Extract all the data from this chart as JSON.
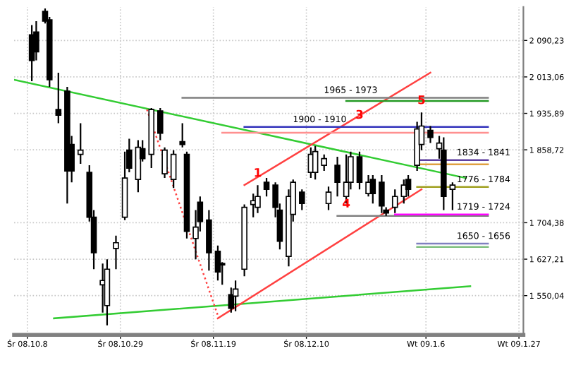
{
  "chart_data": {
    "type": "candlestick",
    "x": [
      "2008-10-09",
      "2008-10-10",
      "2008-10-12",
      "2008-10-13",
      "2008-10-15",
      "2008-10-17",
      "2008-10-18",
      "2008-10-20",
      "2008-10-22",
      "2008-10-23",
      "2008-10-25",
      "2008-10-26",
      "2008-10-28",
      "2008-10-30",
      "2008-10-31",
      "2008-11-02",
      "2008-11-03",
      "2008-11-05",
      "2008-11-07",
      "2008-11-08",
      "2008-11-10",
      "2008-11-12",
      "2008-11-13",
      "2008-11-15",
      "2008-11-16",
      "2008-11-18",
      "2008-11-20",
      "2008-11-21",
      "2008-11-23",
      "2008-11-24",
      "2008-11-26",
      "2008-11-28",
      "2008-11-29",
      "2008-12-01",
      "2008-12-03",
      "2008-12-04",
      "2008-12-06",
      "2008-12-07",
      "2008-12-09",
      "2008-12-11",
      "2008-12-12",
      "2008-12-14",
      "2008-12-15",
      "2008-12-17",
      "2008-12-19",
      "2008-12-20",
      "2008-12-22",
      "2008-12-24",
      "2008-12-25",
      "2008-12-27",
      "2008-12-28",
      "2008-12-30",
      "2009-01-01",
      "2009-01-02",
      "2009-01-04",
      "2009-01-05",
      "2009-01-07",
      "2009-01-09",
      "2009-01-10",
      "2009-01-12"
    ],
    "ohlc": [
      [
        2102,
        2123,
        2004,
        2048
      ],
      [
        2108,
        2131,
        2048,
        2066
      ],
      [
        2152,
        2158,
        2126,
        2131
      ],
      [
        2134,
        2140,
        1992,
        2007
      ],
      [
        1944,
        2022,
        1915,
        1932
      ],
      [
        1983,
        1992,
        1745,
        1814
      ],
      [
        1870,
        1888,
        1790,
        1814
      ],
      [
        1849,
        1915,
        1829,
        1858
      ],
      [
        1811,
        1826,
        1707,
        1716
      ],
      [
        1716,
        1731,
        1606,
        1641
      ],
      [
        1573,
        1618,
        1514,
        1582
      ],
      [
        1529,
        1627,
        1487,
        1606
      ],
      [
        1650,
        1677,
        1606,
        1662
      ],
      [
        1716,
        1855,
        1710,
        1799
      ],
      [
        1858,
        1882,
        1811,
        1820
      ],
      [
        1796,
        1879,
        1769,
        1864
      ],
      [
        1861,
        1879,
        1834,
        1840
      ],
      [
        1849,
        1947,
        1820,
        1944
      ],
      [
        1941,
        1947,
        1879,
        1894
      ],
      [
        1808,
        1864,
        1799,
        1858
      ],
      [
        1796,
        1858,
        1778,
        1849
      ],
      [
        1876,
        1915,
        1864,
        1870
      ],
      [
        1849,
        1855,
        1671,
        1686
      ],
      [
        1671,
        1731,
        1627,
        1695
      ],
      [
        1748,
        1760,
        1686,
        1707
      ],
      [
        1710,
        1731,
        1603,
        1641
      ],
      [
        1644,
        1656,
        1582,
        1600
      ],
      [
        1618,
        1621,
        1573,
        1615
      ],
      [
        1552,
        1567,
        1514,
        1523
      ],
      [
        1549,
        1582,
        1517,
        1564
      ],
      [
        1606,
        1743,
        1591,
        1737
      ],
      [
        1743,
        1766,
        1716,
        1751
      ],
      [
        1737,
        1784,
        1725,
        1760
      ],
      [
        1790,
        1799,
        1760,
        1775
      ],
      [
        1784,
        1790,
        1716,
        1737
      ],
      [
        1731,
        1745,
        1648,
        1665
      ],
      [
        1633,
        1775,
        1612,
        1760
      ],
      [
        1722,
        1796,
        1707,
        1790
      ],
      [
        1769,
        1775,
        1731,
        1745
      ],
      [
        1811,
        1864,
        1799,
        1849
      ],
      [
        1811,
        1867,
        1796,
        1855
      ],
      [
        1826,
        1849,
        1814,
        1840
      ],
      [
        1745,
        1781,
        1731,
        1769
      ],
      [
        1826,
        1844,
        1760,
        1790
      ],
      [
        1760,
        1849,
        1745,
        1790
      ],
      [
        1790,
        1855,
        1775,
        1844
      ],
      [
        1844,
        1855,
        1775,
        1790
      ],
      [
        1766,
        1805,
        1760,
        1790
      ],
      [
        1796,
        1805,
        1745,
        1766
      ],
      [
        1790,
        1805,
        1725,
        1740
      ],
      [
        1731,
        1737,
        1719,
        1725
      ],
      [
        1737,
        1775,
        1725,
        1760
      ],
      [
        1760,
        1796,
        1745,
        1784
      ],
      [
        1796,
        1805,
        1760,
        1775
      ],
      [
        1826,
        1918,
        1814,
        1903
      ],
      [
        1870,
        1938,
        1858,
        1909
      ],
      [
        1900,
        1909,
        1873,
        1885
      ],
      [
        1861,
        1888,
        1840,
        1873
      ],
      [
        1858,
        1885,
        1731,
        1760
      ],
      [
        1775,
        1790,
        1731,
        1784
      ]
    ],
    "series": [
      {
        "type": "line",
        "color": "#33cc33",
        "x": [
          "2008-10-05",
          "2009-01-15"
        ],
        "values": [
          2007,
          1799
        ]
      },
      {
        "type": "line",
        "color": "#33cc33",
        "x": [
          "2008-10-14",
          "2009-01-16"
        ],
        "values": [
          1502,
          1570
        ]
      },
      {
        "type": "line",
        "color": "#ff4040",
        "x": [
          "2008-11-26",
          "2009-01-07"
        ],
        "values": [
          1784,
          2022
        ]
      },
      {
        "type": "line",
        "color": "#ff4040",
        "x": [
          "2008-11-20",
          "2009-01-05"
        ],
        "values": [
          1502,
          1775
        ]
      },
      {
        "type": "line",
        "color": "#ff4040",
        "line_style": "dotted",
        "x": [
          "2008-11-04",
          "2008-11-20"
        ],
        "values": [
          1944,
          1508
        ]
      },
      {
        "type": "line",
        "color": "#808080",
        "x": [
          "2008-11-12",
          "2009-01-20"
        ],
        "values": [
          1969,
          1969
        ]
      },
      {
        "type": "line",
        "color": "#229922",
        "x": [
          "2008-12-19",
          "2009-01-20"
        ],
        "values": [
          1962,
          1962
        ]
      },
      {
        "type": "line",
        "color": "#3333bb",
        "x": [
          "2008-11-26",
          "2009-01-20"
        ],
        "values": [
          1907,
          1907
        ]
      },
      {
        "type": "line",
        "color": "#ff9090",
        "x": [
          "2008-11-21",
          "2009-01-20"
        ],
        "values": [
          1895,
          1895
        ]
      },
      {
        "type": "line",
        "color": "#6040a0",
        "x": [
          "2009-01-04",
          "2009-01-20"
        ],
        "values": [
          1837,
          1837
        ]
      },
      {
        "type": "line",
        "color": "#e0a040",
        "x": [
          "2009-01-04",
          "2009-01-20"
        ],
        "values": [
          1828,
          1828
        ]
      },
      {
        "type": "line",
        "color": "#a0a020",
        "x": [
          "2009-01-04",
          "2009-01-20"
        ],
        "values": [
          1780,
          1780
        ]
      },
      {
        "type": "line",
        "color": "#808080",
        "x": [
          "2008-12-17",
          "2009-01-20"
        ],
        "values": [
          1719,
          1719
        ]
      },
      {
        "type": "line",
        "color": "#ff00ff",
        "x": [
          "2008-12-30",
          "2009-01-20"
        ],
        "values": [
          1722,
          1722
        ]
      },
      {
        "type": "line",
        "color": "#8080c0",
        "x": [
          "2009-01-04",
          "2009-01-20"
        ],
        "values": [
          1660,
          1660
        ]
      },
      {
        "type": "line",
        "color": "#80c080",
        "x": [
          "2009-01-04",
          "2009-01-20"
        ],
        "values": [
          1653,
          1653
        ]
      }
    ],
    "annotations": [
      {
        "text": "1",
        "x": "2008-11-29",
        "y": 1784
      },
      {
        "text": "3",
        "x": "2008-12-22",
        "y": 1907
      },
      {
        "text": "5",
        "x": "2009-01-05",
        "y": 1938
      },
      {
        "text": "4",
        "x": "2008-12-19",
        "y": 1719
      },
      {
        "text": "1965 - 1973",
        "x": "2008-12-20",
        "y": 1969
      },
      {
        "text": "1900 - 1910",
        "x": "2008-12-13",
        "y": 1907
      },
      {
        "text": "1834 - 1841",
        "x": "2009-01-19",
        "y": 1837
      },
      {
        "text": "1776 - 1784",
        "x": "2009-01-19",
        "y": 1780
      },
      {
        "text": "1719 - 1724",
        "x": "2009-01-19",
        "y": 1722
      },
      {
        "text": "1650 - 1656",
        "x": "2009-01-19",
        "y": 1660
      }
    ],
    "xlim": [
      "2008-10-05",
      "2009-01-28"
    ],
    "xticks": [
      {
        "value": "2008-10-08",
        "label": "Śr 08.10.8"
      },
      {
        "value": "2008-10-29",
        "label": "Śr 08.10.29"
      },
      {
        "value": "2008-11-19",
        "label": "Śr 08.11.19"
      },
      {
        "value": "2008-12-10",
        "label": "Śr 08.12.10"
      },
      {
        "value": "2009-01-06",
        "label": "Wt 09.1.6"
      },
      {
        "value": "2009-01-27",
        "label": "Wt 09.1.27"
      }
    ],
    "ylim": [
      1467,
      2161
    ],
    "yticks": [
      {
        "value": 2090.23,
        "label": "2 090,23"
      },
      {
        "value": 2013.06,
        "label": "2 013,06"
      },
      {
        "value": 1935.89,
        "label": "1 935,89"
      },
      {
        "value": 1858.72,
        "label": "1 858,72"
      },
      {
        "value": 1704.38,
        "label": "1 704,38"
      },
      {
        "value": 1627.21,
        "label": "1 627,21"
      },
      {
        "value": 1550.04,
        "label": "1 550,04"
      }
    ],
    "grid": true
  }
}
